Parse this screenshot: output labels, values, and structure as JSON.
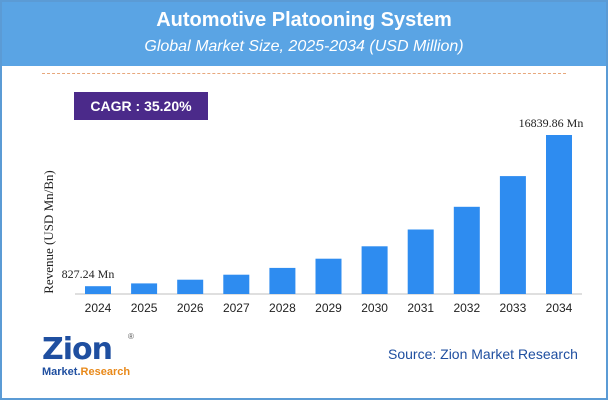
{
  "header": {
    "title": "Automotive Platooning System",
    "subtitle": "Global Market Size, 2025-2034 (USD Million)"
  },
  "cagr": {
    "label": "CAGR : 35.20%"
  },
  "logo": {
    "main": "Zion",
    "sub_left": "Market.",
    "sub_right": "Research",
    "registered": "®"
  },
  "source": "Source: Zion Market Research",
  "colors": {
    "bar": "#2e8cf0",
    "header": "#5aa4e4",
    "cagr_bg": "#4b2a8a",
    "text_blue": "#1f4fa0"
  },
  "chart_data": {
    "type": "bar",
    "title": "Automotive Platooning System",
    "subtitle": "Global Market Size, 2025-2034 (USD Million)",
    "xlabel": "",
    "ylabel": "Revenue (USD Mn/Bn)",
    "categories": [
      "2024",
      "2025",
      "2026",
      "2027",
      "2028",
      "2029",
      "2030",
      "2031",
      "2032",
      "2033",
      "2034"
    ],
    "values": [
      827.24,
      1118,
      1512,
      2044,
      2764,
      3737,
      5052,
      6830,
      9235,
      12485,
      16839.86
    ],
    "data_labels": {
      "2024": "827.24 Mn",
      "2034": "16839.86 Mn"
    },
    "ylim": [
      0,
      16839.86
    ],
    "grid": false
  }
}
